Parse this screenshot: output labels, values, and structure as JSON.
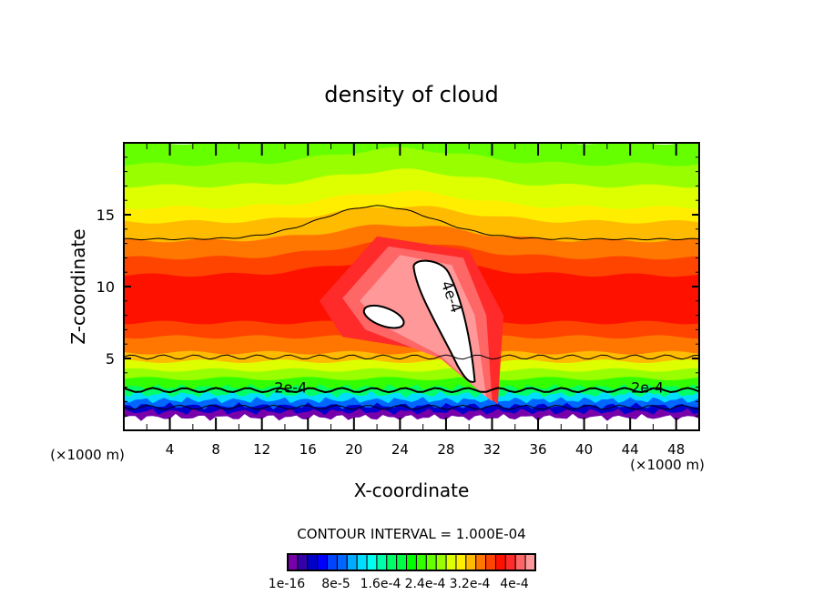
{
  "chart_data": {
    "type": "heatmap",
    "subtype": "filled-contour",
    "title": "density of cloud",
    "xlabel": "X-coordinate",
    "ylabel": "Z-coordinate",
    "x_unit_label": "(×1000 m)",
    "x_unit_label_right": "(×1000 m)",
    "xlim": [
      0,
      50
    ],
    "ylim": [
      0,
      20
    ],
    "x_ticks": [
      4,
      8,
      12,
      16,
      20,
      24,
      28,
      32,
      36,
      40,
      44,
      48
    ],
    "x_tick_labels": [
      "4",
      "8",
      "12",
      "16",
      "20",
      "24",
      "28",
      "32",
      "36",
      "40",
      "44",
      "48"
    ],
    "x_minor_step": 2,
    "y_ticks": [
      5,
      10,
      15
    ],
    "y_tick_labels": [
      "5",
      "10",
      "15"
    ],
    "y_minor_step": 1,
    "contour_interval_text": "CONTOUR INTERVAL = 1.000E-04",
    "contour_interval": 0.0001,
    "contour_labels": [
      {
        "text": "2e-4",
        "x": 14.5,
        "z": 3.0
      },
      {
        "text": "2e-4",
        "x": 45.5,
        "z": 3.0
      },
      {
        "text": "4e-4",
        "x": 28.5,
        "z": 9.3,
        "rotate": 70
      }
    ],
    "colorbar": {
      "colors": [
        "#7700aa",
        "#3300aa",
        "#0000cc",
        "#0000ff",
        "#0044ff",
        "#0066ff",
        "#00aaff",
        "#00ddff",
        "#00ffee",
        "#00ffaa",
        "#00ff66",
        "#00ff44",
        "#00ff00",
        "#33ff00",
        "#66ff00",
        "#99ff00",
        "#ddff00",
        "#ffee00",
        "#ffbb00",
        "#ff7700",
        "#ff4400",
        "#ff1100",
        "#ff2a2a",
        "#ff6666",
        "#ff9999"
      ],
      "tick_labels": [
        "1e-16",
        "8e-5",
        "1.6e-4",
        "2.4e-4",
        "3.2e-4",
        "4e-4"
      ],
      "tick_values": [
        1e-16,
        8e-05,
        0.00016,
        0.00024,
        0.00032,
        0.0004
      ],
      "min": 1e-16,
      "max": 0.0004
    },
    "layers_by_height": [
      {
        "z_top": 0.9,
        "value": 0,
        "color": "#ffffff"
      },
      {
        "z_top": 1.3,
        "value": 1e-05,
        "color": "#7700aa"
      },
      {
        "z_top": 1.7,
        "value": 3e-05,
        "color": "#0000cc"
      },
      {
        "z_top": 2.1,
        "value": 6e-05,
        "color": "#0066ff"
      },
      {
        "z_top": 2.5,
        "value": 0.0001,
        "color": "#00ddff"
      },
      {
        "z_top": 3.0,
        "value": 0.00014,
        "color": "#00ff66"
      },
      {
        "z_top": 3.6,
        "value": 0.00018,
        "color": "#33ff00"
      },
      {
        "z_top": 4.2,
        "value": 0.00021,
        "color": "#99ff00"
      },
      {
        "z_top": 4.8,
        "value": 0.00023,
        "color": "#ddff00"
      },
      {
        "z_top": 5.4,
        "value": 0.00025,
        "color": "#ffbb00"
      },
      {
        "z_top": 6.5,
        "value": 0.00028,
        "color": "#ff7700"
      },
      {
        "z_top": 7.5,
        "value": 0.0003,
        "color": "#ff4400"
      },
      {
        "z_top": 10.8,
        "value": 0.00033,
        "color": "#ff1100"
      },
      {
        "z_top": 12.0,
        "value": 0.0003,
        "color": "#ff4400"
      },
      {
        "z_top": 13.2,
        "value": 0.00028,
        "color": "#ff7700"
      },
      {
        "z_top": 14.5,
        "value": 0.00026,
        "color": "#ffbb00"
      },
      {
        "z_top": 15.5,
        "value": 0.00024,
        "color": "#ffee00"
      },
      {
        "z_top": 17.0,
        "value": 0.00022,
        "color": "#ddff00"
      },
      {
        "z_top": 18.5,
        "value": 0.0002,
        "color": "#99ff00"
      },
      {
        "z_top": 20.0,
        "value": 0.00019,
        "color": "#66ff00"
      }
    ]
  }
}
